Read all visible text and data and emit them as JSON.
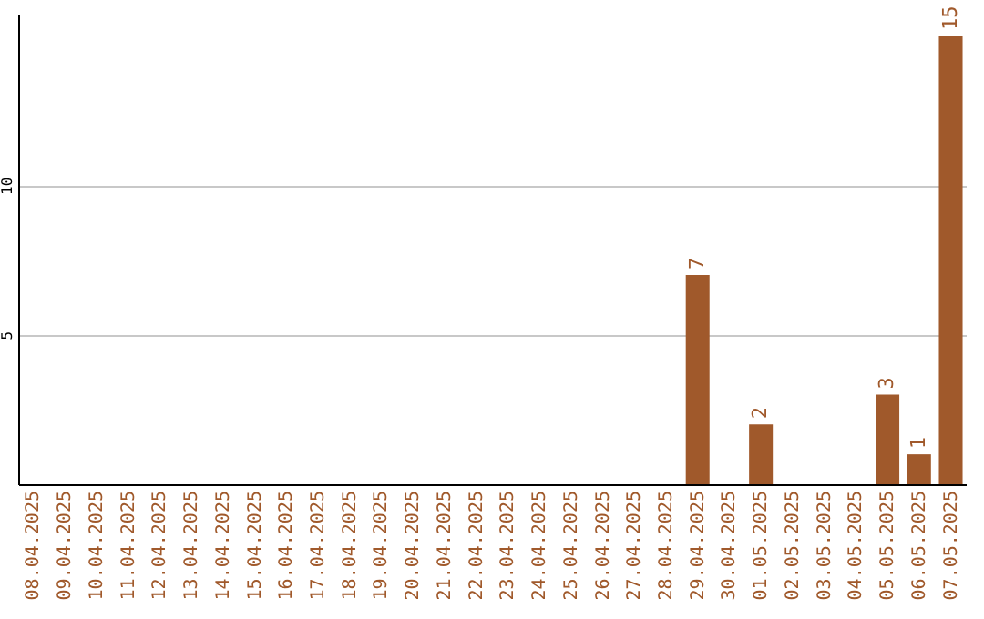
{
  "chart_data": {
    "type": "bar",
    "categories": [
      "08.04.2025",
      "09.04.2025",
      "10.04.2025",
      "11.04.2025",
      "12.04.2025",
      "13.04.2025",
      "14.04.2025",
      "15.04.2025",
      "16.04.2025",
      "17.04.2025",
      "18.04.2025",
      "19.04.2025",
      "20.04.2025",
      "21.04.2025",
      "22.04.2025",
      "23.04.2025",
      "24.04.2025",
      "25.04.2025",
      "26.04.2025",
      "27.04.2025",
      "28.04.2025",
      "29.04.2025",
      "30.04.2025",
      "01.05.2025",
      "02.05.2025",
      "03.05.2025",
      "04.05.2025",
      "05.05.2025",
      "06.05.2025",
      "07.05.2025"
    ],
    "values": [
      0,
      0,
      0,
      0,
      0,
      0,
      0,
      0,
      0,
      0,
      0,
      0,
      0,
      0,
      0,
      0,
      0,
      0,
      0,
      0,
      0,
      7,
      0,
      2,
      0,
      0,
      0,
      3,
      1,
      15
    ],
    "value_labels": [
      null,
      null,
      null,
      null,
      null,
      null,
      null,
      null,
      null,
      null,
      null,
      null,
      null,
      null,
      null,
      null,
      null,
      null,
      null,
      null,
      null,
      "7",
      null,
      "2",
      null,
      null,
      null,
      "3",
      "1",
      "15"
    ],
    "color": "#a0592b",
    "ylim": [
      0,
      15.7
    ],
    "yticks": [
      5,
      10
    ],
    "grid": "y"
  }
}
